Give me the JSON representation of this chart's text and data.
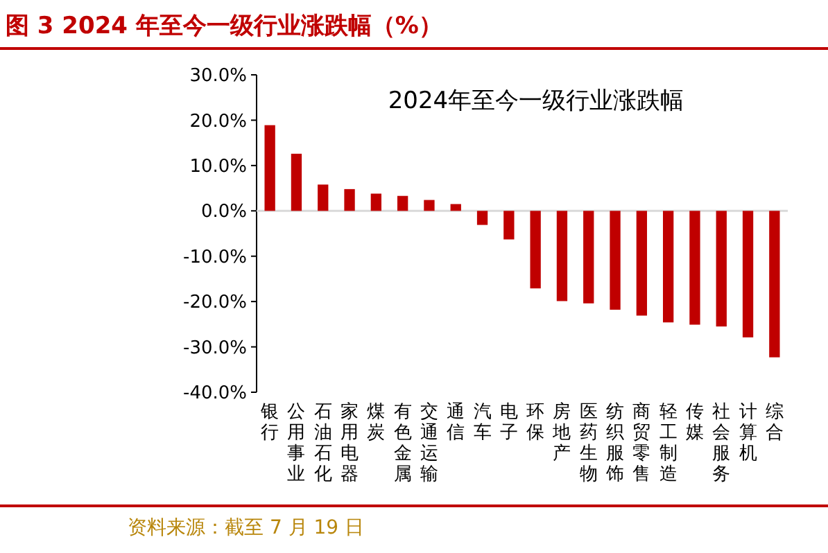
{
  "chart_data": {
    "type": "bar",
    "title": "图 3 2024 年至今一级行业涨跌幅（%）",
    "subtitle": "2024年至今一级行业涨跌幅",
    "categories": [
      "银行",
      "公用事业",
      "石油石化",
      "家用电器",
      "煤炭",
      "有色金属",
      "交通运输",
      "通信",
      "汽车",
      "电子",
      "环保",
      "房地产",
      "医药生物",
      "纺织服饰",
      "商贸零售",
      "轻工制造",
      "传媒",
      "社会服务",
      "计算机",
      "综合"
    ],
    "values": [
      18.9,
      12.6,
      5.8,
      4.8,
      3.8,
      3.3,
      2.4,
      1.5,
      -3.1,
      -6.3,
      -17.1,
      -19.9,
      -20.4,
      -21.8,
      -23.1,
      -24.6,
      -25.1,
      -25.5,
      -27.9,
      -32.3
    ],
    "color": "#c00000",
    "ylim": [
      -40,
      30
    ],
    "yticks": [
      {
        "value": -40,
        "label": "-40.0%"
      },
      {
        "value": -30,
        "label": "-30.0%"
      },
      {
        "value": -20,
        "label": "-20.0%"
      },
      {
        "value": -10,
        "label": "-10.0%"
      },
      {
        "value": 0,
        "label": "0.0%"
      },
      {
        "value": 10,
        "label": "10.0%"
      },
      {
        "value": 20,
        "label": "20.0%"
      },
      {
        "value": 30,
        "label": "30.0%"
      }
    ],
    "annotations": [
      "资料来源：截至 7 月 19 日"
    ]
  }
}
